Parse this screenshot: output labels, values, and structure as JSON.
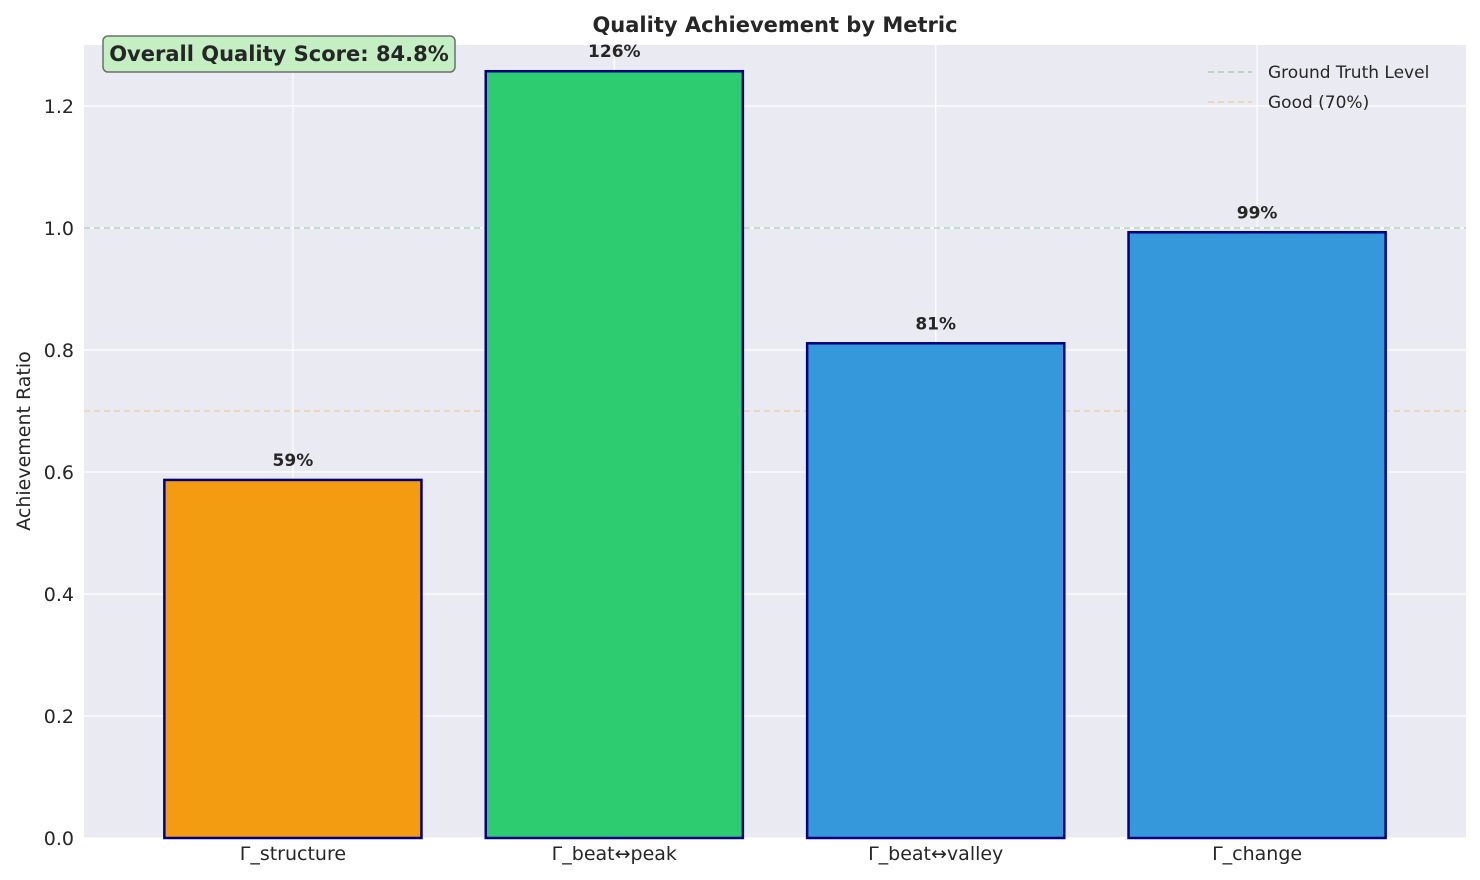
{
  "chart_data": {
    "type": "bar",
    "title": "Quality Achievement by Metric",
    "xlabel": "",
    "ylabel": "Achievement Ratio",
    "categories": [
      "Γ_structure",
      "Γ_beat↔peak",
      "Γ_beat↔valley",
      "Γ_change"
    ],
    "values": [
      0.587,
      1.257,
      0.811,
      0.993
    ],
    "data_labels": [
      "59%",
      "126%",
      "81%",
      "99%"
    ],
    "bar_colors": [
      "#f39c12",
      "#2ecc71",
      "#3498db",
      "#3498db"
    ],
    "bar_edge_color": "#000080",
    "ylim": [
      0,
      1.3
    ],
    "yticks": [
      0.0,
      0.2,
      0.4,
      0.6,
      0.8,
      1.0,
      1.2
    ],
    "ytick_labels": [
      "0.0",
      "0.2",
      "0.4",
      "0.6",
      "0.8",
      "1.0",
      "1.2"
    ],
    "reference_lines": [
      {
        "name": "Ground Truth Level",
        "value": 1.0,
        "color": "#2ca02c",
        "style": "dashed"
      },
      {
        "name": "Good (70%)",
        "value": 0.7,
        "color": "#ff9f1c",
        "style": "dashed"
      }
    ],
    "grid": true,
    "legend_position": "top-right",
    "annotation": {
      "text": "Overall Quality Score: 84.8%",
      "box_color": "#c3efc3",
      "position": "top-left"
    },
    "background_color": "#eaeaf2"
  }
}
